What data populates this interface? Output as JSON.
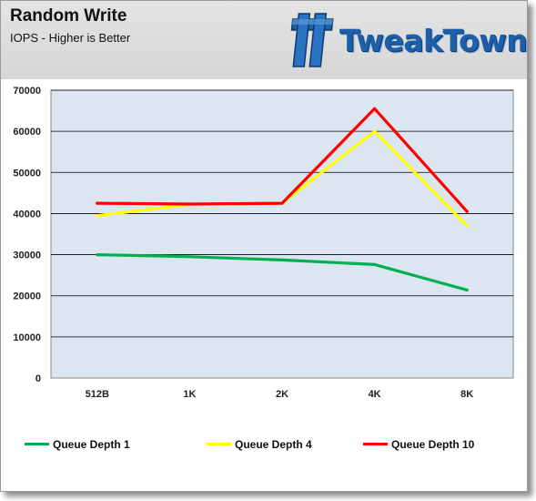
{
  "title": "Random Write",
  "subtitle": "IOPS - Higher is Better",
  "logo": {
    "text": "TweakTown"
  },
  "colors": {
    "plot_bg": "#dce6f1",
    "grid": "#000000",
    "header_bg": "#dcdcdc",
    "logo_blue": "#1d5fa8"
  },
  "chart_data": {
    "type": "line",
    "title": "Random Write",
    "subtitle": "IOPS - Higher is Better",
    "xlabel": "",
    "ylabel": "",
    "categories": [
      "512B",
      "1K",
      "2K",
      "4K",
      "8K"
    ],
    "ylim": [
      0,
      70000
    ],
    "yticks": [
      0,
      10000,
      20000,
      30000,
      40000,
      50000,
      60000,
      70000
    ],
    "ytick_labels": [
      "0",
      "10000",
      "20000",
      "30000",
      "40000",
      "50000",
      "60000",
      "70000"
    ],
    "grid": true,
    "legend_position": "bottom",
    "series": [
      {
        "name": "Queue Depth 1",
        "color": "#00b050",
        "values": [
          30000,
          29500,
          28700,
          27600,
          21400
        ]
      },
      {
        "name": "Queue Depth 4",
        "color": "#ffff00",
        "values": [
          39500,
          42200,
          42500,
          60000,
          37000
        ]
      },
      {
        "name": "Queue Depth 10",
        "color": "#ff0000",
        "values": [
          42500,
          42300,
          42500,
          65500,
          40500
        ]
      }
    ]
  }
}
